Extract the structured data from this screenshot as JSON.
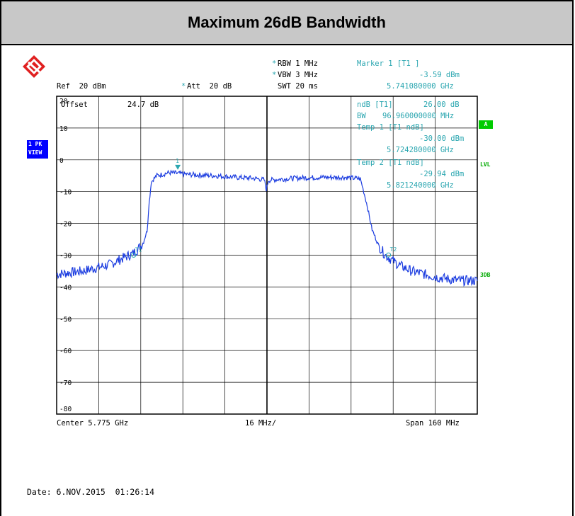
{
  "title": "Maximum 26dB Bandwidth",
  "header": {
    "rbw": "RBW 1 MHz",
    "vbw": "VBW 3 MHz",
    "swt": "SWT 20 ms",
    "ref": "Ref  20 dBm",
    "att": "Att  20 dB",
    "offset_label": "Offset",
    "offset_value": "24.7 dB",
    "star": "*"
  },
  "readout": {
    "marker_title": "Marker 1 [T1 ]",
    "marker_level": "-3.59 dBm",
    "marker_freq": "5.741080000 GHz",
    "ndb_label": "ndB [T1]",
    "ndb_value": "26.00 dB",
    "bw_label": "BW",
    "bw_value": "96.960000000 MHz",
    "temp1_title": "Temp 1 [T1 ndB]",
    "temp1_level": "-30.00 dBm",
    "temp1_freq": "5.724280000 GHz",
    "temp2_title": "Temp 2 [T1 ndB]",
    "temp2_level": "-29.94 dBm",
    "temp2_freq": "5.821240000 GHz"
  },
  "side_labels": {
    "pk_top": "1 PK",
    "pk_bottom": "VIEW",
    "a_box": "A",
    "lvl": "LVL",
    "db3": "3DB"
  },
  "footer": {
    "center": "Center 5.775 GHz",
    "div": "16 MHz/",
    "span": "Span 160 MHz",
    "date": "Date: 6.NOV.2015  01:26:14"
  },
  "colors": {
    "trace": "#1c3de0",
    "readout": "#2aa6b0",
    "title_bg": "#c8c8c8",
    "pk_box": "#0000ff",
    "a_box": "#00cc00"
  },
  "chart_data": {
    "type": "line",
    "title": "Maximum 26dB Bandwidth",
    "x_unit": "GHz",
    "y_unit": "dBm",
    "xlim": [
      5.695,
      5.855
    ],
    "ylim": [
      -80,
      20
    ],
    "y_ticks": [
      "20",
      "10",
      "0",
      "-10",
      "-20",
      "-30",
      "-40",
      "-50",
      "-60",
      "-70",
      "-80"
    ],
    "grid": true,
    "series": [
      {
        "x": [
          5.695,
          5.705,
          5.715,
          5.72,
          5.724,
          5.726,
          5.728,
          5.7295,
          5.73,
          5.731,
          5.733,
          5.738,
          5.745,
          5.755,
          5.765,
          5.77,
          5.774,
          5.7748,
          5.7755,
          5.777,
          5.785,
          5.795,
          5.805,
          5.8105,
          5.8112,
          5.813,
          5.815,
          5.8175,
          5.82,
          5.825,
          5.83,
          5.84,
          5.848,
          5.855
        ],
        "y": [
          -36,
          -35,
          -33,
          -31,
          -29.5,
          -28,
          -26,
          -22,
          -15,
          -7,
          -5,
          -4,
          -4.6,
          -5,
          -5.6,
          -5.8,
          -6.3,
          -9.5,
          -6.5,
          -6.3,
          -5.8,
          -5.5,
          -5.5,
          -6,
          -8,
          -14,
          -22,
          -27,
          -30,
          -33,
          -35,
          -37,
          -38,
          -38
        ]
      }
    ],
    "markers": [
      {
        "name": "1",
        "x": 5.74108,
        "y": -3.59
      },
      {
        "name": "T1",
        "x": 5.72428,
        "y": -30.0
      },
      {
        "name": "T2",
        "x": 5.82124,
        "y": -29.94
      }
    ]
  }
}
